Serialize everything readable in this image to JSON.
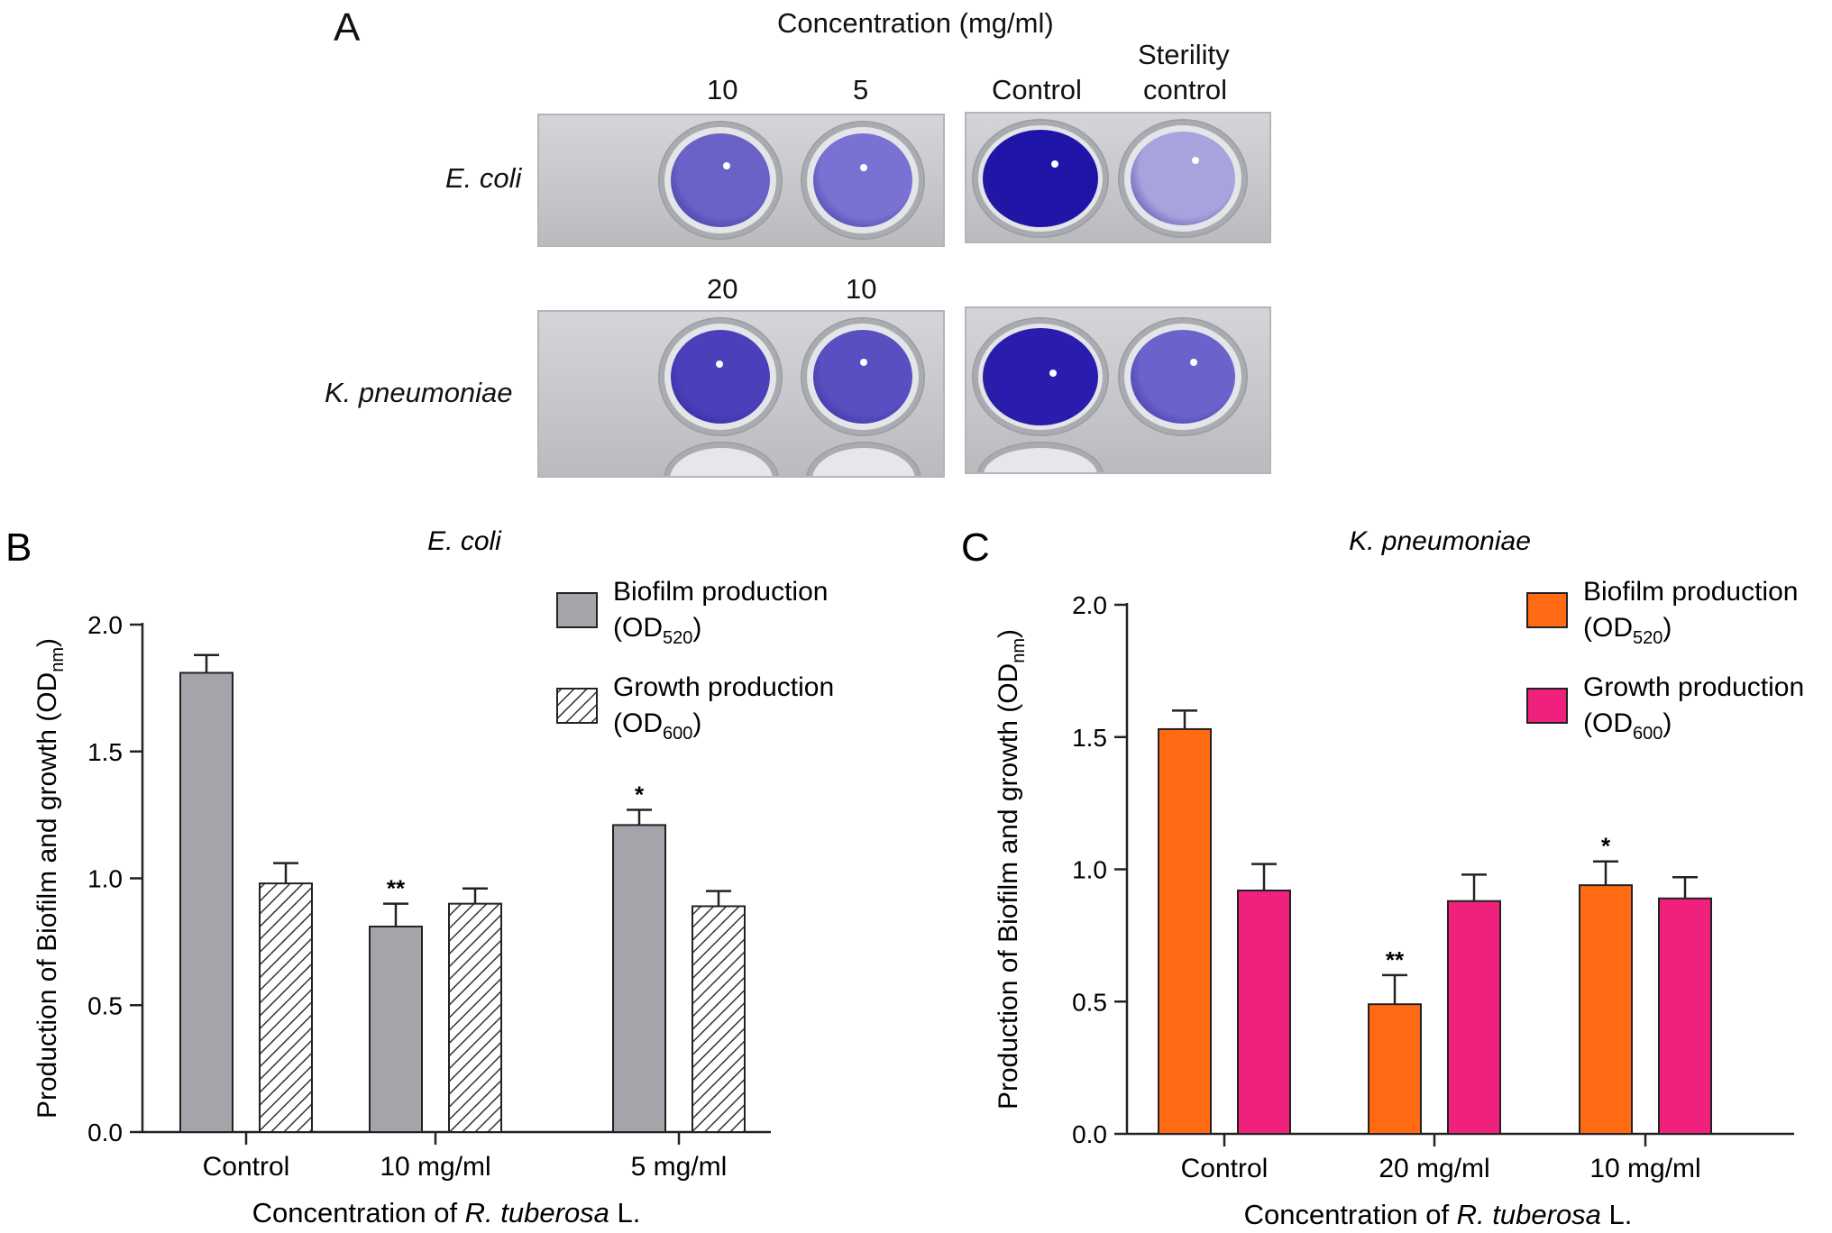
{
  "panel_a": {
    "letter": "A",
    "header": "Concentration (mg/ml)",
    "columns": {
      "control": "Control",
      "sterility_line1": "Sterility",
      "sterility_line2": "control"
    },
    "rows": [
      {
        "organism": "E. coli",
        "conc_labels": [
          "10",
          "5"
        ],
        "well_colors": [
          "#6a62c6",
          "#7a72d2",
          "#1f14a8",
          "#a7a3dc"
        ]
      },
      {
        "organism": "K. pneumoniae",
        "conc_labels": [
          "20",
          "10"
        ],
        "well_colors": [
          "#4c3fba",
          "#5a4fc0",
          "#2a1cae",
          "#6b63cc"
        ]
      }
    ]
  },
  "chart_data": [
    {
      "type": "bar",
      "panel_letter": "B",
      "title": "E. coli",
      "categories": [
        "Control",
        "10 mg/ml",
        "5 mg/ml"
      ],
      "series": [
        {
          "name": "Biofilm production",
          "name_sub": "OD",
          "subscript": "520",
          "values": [
            1.81,
            0.81,
            1.21
          ],
          "errors": [
            0.07,
            0.09,
            0.06
          ],
          "fill": "#a4a5aa",
          "pattern": "solid",
          "significance": [
            "",
            "**",
            "*"
          ]
        },
        {
          "name": "Growth production",
          "name_sub": "OD",
          "subscript": "600",
          "values": [
            0.98,
            0.9,
            0.89
          ],
          "errors": [
            0.08,
            0.06,
            0.06
          ],
          "fill": "#ffffff",
          "pattern": "hatch",
          "significance": [
            "",
            "",
            ""
          ]
        }
      ],
      "xlabel_prefix": "Concentration of ",
      "xlabel_italic": "R. tuberosa",
      "xlabel_suffix": " L.",
      "ylabel_main": "Production of Biofilm and growth (OD",
      "ylabel_sub": "nm",
      "ylabel_end": ")",
      "ylim": [
        0,
        2.0
      ],
      "yticks": [
        "0.0",
        "0.5",
        "1.0",
        "1.5",
        "2.0"
      ],
      "legend_position": "top-right",
      "grid": false
    },
    {
      "type": "bar",
      "panel_letter": "C",
      "title": "K. pneumoniae",
      "categories": [
        "Control",
        "20 mg/ml",
        "10 mg/ml"
      ],
      "series": [
        {
          "name": "Biofilm production",
          "name_sub": "OD",
          "subscript": "520",
          "values": [
            1.53,
            0.49,
            0.94
          ],
          "errors": [
            0.07,
            0.11,
            0.09
          ],
          "fill": "#ff6a13",
          "pattern": "solid",
          "significance": [
            "",
            "**",
            "*"
          ]
        },
        {
          "name": "Growth production",
          "name_sub": "OD",
          "subscript": "600",
          "values": [
            0.92,
            0.88,
            0.89
          ],
          "errors": [
            0.1,
            0.1,
            0.08
          ],
          "fill": "#f0217d",
          "pattern": "solid",
          "significance": [
            "",
            "",
            ""
          ]
        }
      ],
      "xlabel_prefix": "Concentration of ",
      "xlabel_italic": "R. tuberosa",
      "xlabel_suffix": " L.",
      "ylabel_main": "Production of Biofilm and growth (OD",
      "ylabel_sub": "nm",
      "ylabel_end": ")",
      "ylim": [
        0,
        2.0
      ],
      "yticks": [
        "0.0",
        "0.5",
        "1.0",
        "1.5",
        "2.0"
      ],
      "legend_position": "top-right",
      "grid": false
    }
  ]
}
